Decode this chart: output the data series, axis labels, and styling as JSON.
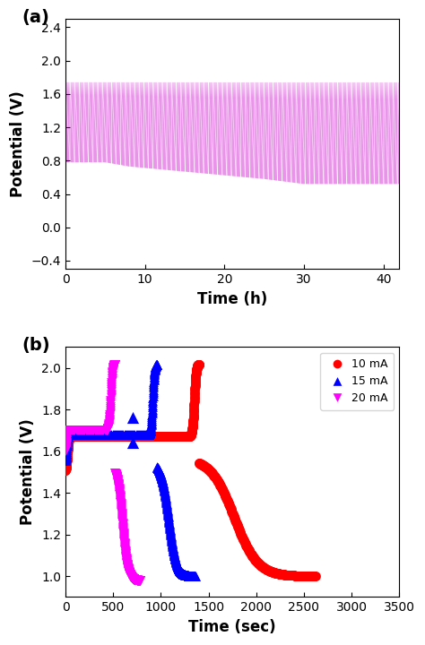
{
  "panel_a": {
    "label": "(a)",
    "xlabel": "Time (h)",
    "ylabel": "Potential (V)",
    "xlim": [
      0,
      42
    ],
    "ylim": [
      -0.5,
      2.5
    ],
    "xticks": [
      0,
      10,
      20,
      30,
      40
    ],
    "yticks": [
      -0.4,
      0.0,
      0.4,
      0.8,
      1.2,
      1.6,
      2.0,
      2.4
    ],
    "color": "#CC00CC",
    "upper_env": 1.75,
    "lower_env_0": 0.78,
    "lower_env_5": 0.73,
    "lower_env_8": 0.73,
    "lower_env_25": 0.58,
    "lower_env_30": 0.52,
    "lower_env_42": 0.52,
    "n_cycles": 300,
    "n_points": 30000
  },
  "panel_b": {
    "label": "(b)",
    "xlabel": "Time (sec)",
    "ylabel": "Potential (V)",
    "xlim": [
      0,
      3500
    ],
    "ylim": [
      0.9,
      2.1
    ],
    "xticks": [
      0,
      500,
      1000,
      1500,
      2000,
      2500,
      3000,
      3500
    ],
    "yticks": [
      1.0,
      1.2,
      1.4,
      1.6,
      1.8,
      2.0
    ],
    "marker_size": 60,
    "series": [
      {
        "label": "10 mA",
        "color": "#FF0000",
        "marker": "o",
        "init_t": [
          0,
          40
        ],
        "init_v": [
          1.5,
          1.67
        ],
        "plateau_t": [
          40,
          1300
        ],
        "plateau_v": 1.67,
        "charge_t": [
          1300,
          1400
        ],
        "charge_v_low": 1.67,
        "charge_v_high": 2.02,
        "discharge_t": [
          1400,
          2620
        ],
        "discharge_v_high": 1.57,
        "discharge_v_low": 1.0,
        "extra_dots_t": [
          1380,
          1390,
          1395,
          1400,
          1405,
          1410,
          1415,
          1420,
          1430
        ],
        "extra_dots_v": [
          1.83,
          1.78,
          1.75,
          1.72,
          1.69,
          1.66,
          1.63,
          1.6,
          1.58
        ]
      },
      {
        "label": "15 mA",
        "color": "#0000FF",
        "marker": "^",
        "init_t": [
          0,
          25
        ],
        "init_v": [
          1.55,
          1.68
        ],
        "plateau_t": [
          25,
          870
        ],
        "plateau_v": 1.68,
        "charge_t": [
          870,
          960
        ],
        "charge_v_low": 1.68,
        "charge_v_high": 2.02,
        "discharge_t": [
          960,
          1360
        ],
        "discharge_v_high": 1.55,
        "discharge_v_low": 1.0,
        "triangle_t": [
          700,
          700
        ],
        "triangle_v": [
          1.76,
          1.64
        ]
      },
      {
        "label": "20 mA",
        "color": "#FF00FF",
        "marker": "v",
        "init_t": [
          0,
          15
        ],
        "init_v": [
          1.6,
          1.7
        ],
        "plateau_t": [
          15,
          430
        ],
        "plateau_v": 1.7,
        "charge_t": [
          430,
          520
        ],
        "charge_v_low": 1.7,
        "charge_v_high": 2.02,
        "discharge_t": [
          520,
          780
        ],
        "discharge_v_high": 1.52,
        "discharge_v_low": 0.98
      }
    ],
    "legend_loc": "upper right"
  }
}
